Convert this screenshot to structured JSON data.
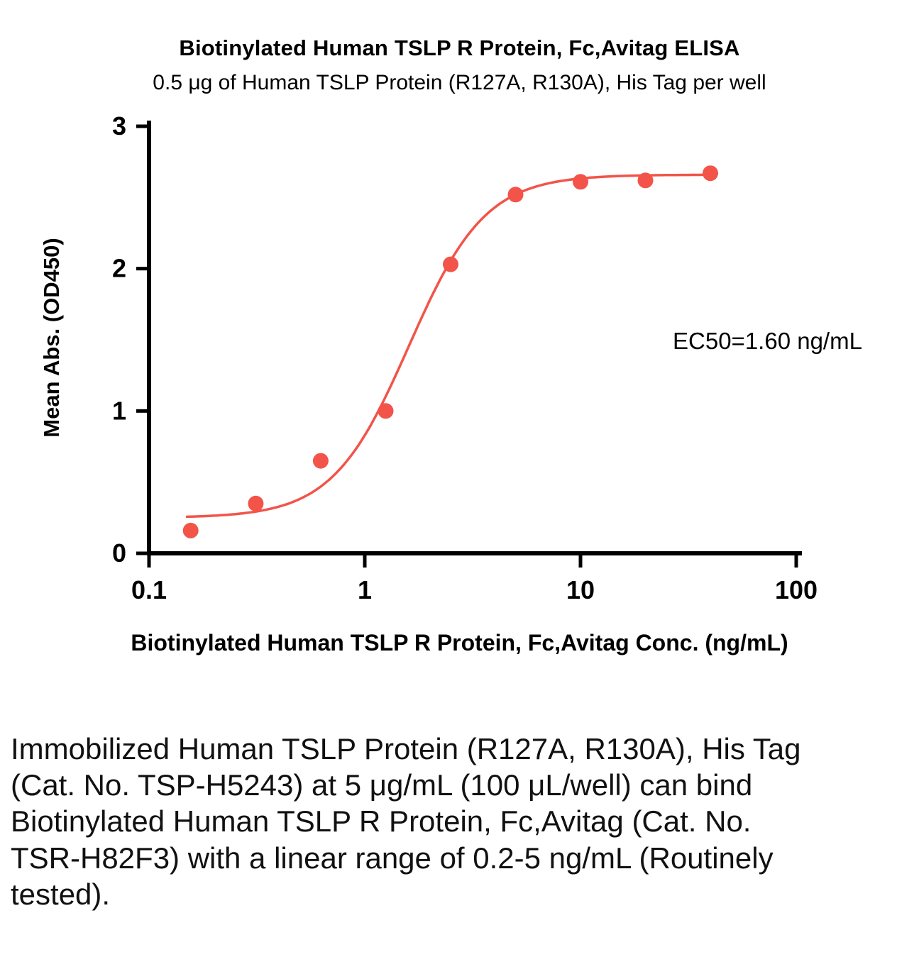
{
  "chart_data": {
    "type": "scatter",
    "title": "Biotinylated Human TSLP R Protein, Fc,Avitag ELISA",
    "subtitle": "0.5 μg of Human TSLP Protein (R127A, R130A), His Tag per well",
    "xlabel": "Biotinylated Human TSLP R Protein, Fc,Avitag Conc. (ng/mL)",
    "ylabel": "Mean Abs. (OD450)",
    "x_scale": "log",
    "xlim": [
      0.1,
      100
    ],
    "ylim": [
      0,
      3
    ],
    "x_ticks": [
      0.1,
      1,
      10,
      100
    ],
    "x_tick_labels": [
      "0.1",
      "1",
      "10",
      "100"
    ],
    "y_ticks": [
      0,
      1,
      2,
      3
    ],
    "y_tick_labels": [
      "0",
      "1",
      "2",
      "3"
    ],
    "grid": false,
    "legend": null,
    "series_color": "#f25449",
    "axis_color": "#000000",
    "points": {
      "x": [
        0.156,
        0.3125,
        0.625,
        1.25,
        2.5,
        5,
        10,
        20,
        40
      ],
      "y": [
        0.16,
        0.35,
        0.65,
        1.0,
        2.03,
        2.52,
        2.61,
        2.62,
        2.67
      ]
    },
    "fit_curve": {
      "model": "4PL",
      "bottom": 0.25,
      "top": 2.66,
      "ec50": 1.6,
      "hill": 2.45,
      "x_start": 0.15,
      "x_end": 40
    },
    "annotation": "EC50=1.60 ng/mL"
  },
  "caption": "Immobilized Human TSLP Protein (R127A, R130A), His Tag (Cat. No. TSP-H5243) at 5 μg/mL (100 μL/well) can bind Biotinylated Human TSLP R Protein, Fc,Avitag (Cat. No. TSR-H82F3) with a linear range of 0.2-5 ng/mL (Routinely tested)."
}
